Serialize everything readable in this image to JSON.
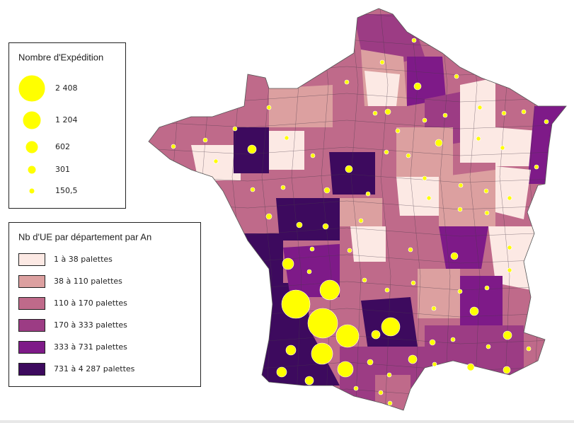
{
  "legend_size": {
    "title": "Nombre d'Expédition",
    "items": [
      "2 408",
      "1 204",
      "602",
      "301",
      "150,5"
    ]
  },
  "legend_color": {
    "title": "Nb d'UE par département par An",
    "items": [
      {
        "label": "1 à 38 palettes",
        "color": "#fce9e4"
      },
      {
        "label": "38 à 110 palettes",
        "color": "#dca0a0"
      },
      {
        "label": "110 à 170 palettes",
        "color": "#bf6a8a"
      },
      {
        "label": "170 à 333 palettes",
        "color": "#9c3c84"
      },
      {
        "label": "333 à 731 palettes",
        "color": "#7e1a88"
      },
      {
        "label": "731 à 4 287 palettes",
        "color": "#3d0a5e"
      }
    ]
  }
}
